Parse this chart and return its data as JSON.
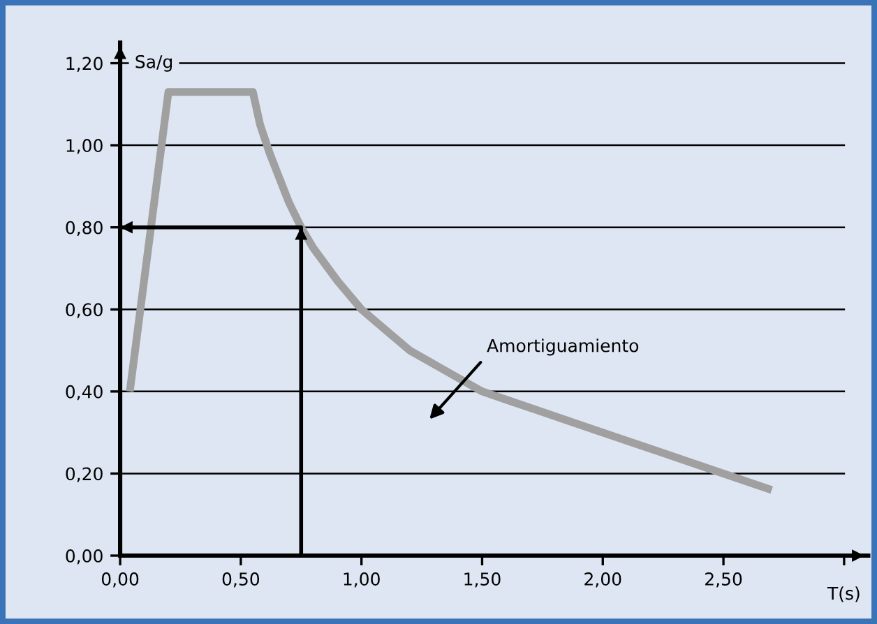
{
  "chart_data": {
    "type": "line",
    "ylabel": "Sa/g",
    "xlabel": "T(s)",
    "xlim": [
      0,
      3.1
    ],
    "ylim": [
      0,
      1.25
    ],
    "xticks": [
      {
        "value": 0,
        "label": "0,00"
      },
      {
        "value": 0.5,
        "label": "0,50"
      },
      {
        "value": 1,
        "label": "1,00"
      },
      {
        "value": 1.5,
        "label": "1,50"
      },
      {
        "value": 2,
        "label": "2,00"
      },
      {
        "value": 2.5,
        "label": "2,50"
      },
      {
        "value": 3,
        "label": null
      }
    ],
    "yticks": [
      {
        "value": 0,
        "label": "0,00"
      },
      {
        "value": 0.2,
        "label": "0,20"
      },
      {
        "value": 0.4,
        "label": "0,40"
      },
      {
        "value": 0.6,
        "label": "0,60"
      },
      {
        "value": 0.8,
        "label": "0,80"
      },
      {
        "value": 1,
        "label": "1,00"
      },
      {
        "value": 1.2,
        "label": "1,20"
      }
    ],
    "grid": "y",
    "legend": false,
    "marker": "none",
    "line_style": "solid",
    "series": [
      {
        "color": "#a0a0a0",
        "x": [
          0.04,
          0.2,
          0.55,
          0.58,
          0.62,
          0.66,
          0.7,
          0.75,
          0.8,
          0.85,
          0.9,
          1.0,
          1.1,
          1.2,
          1.35,
          1.5,
          1.6,
          1.75,
          1.9,
          2.0,
          2.1,
          2.25,
          2.4,
          2.5,
          2.7
        ],
        "values": [
          0.4,
          1.13,
          1.13,
          1.05,
          0.98,
          0.92,
          0.86,
          0.8,
          0.75,
          0.71,
          0.67,
          0.6,
          0.55,
          0.5,
          0.45,
          0.4,
          0.38,
          0.35,
          0.32,
          0.3,
          0.28,
          0.25,
          0.22,
          0.2,
          0.16
        ]
      },
      {
        "color": "#000000",
        "x": [
          0.75,
          0.75,
          0
        ],
        "values": [
          0,
          0.8,
          0.8
        ]
      }
    ],
    "annotations": [
      "Amortiguamiento"
    ]
  }
}
